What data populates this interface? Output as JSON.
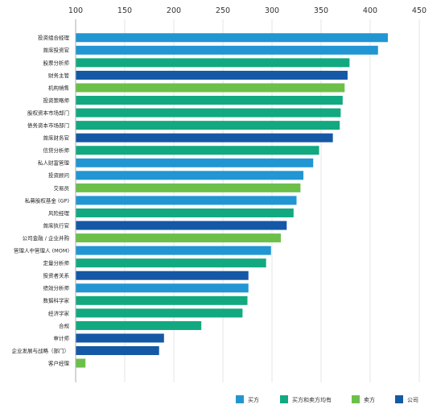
{
  "chart_data": {
    "type": "bar",
    "orientation": "horizontal",
    "title": "",
    "xlabel": "",
    "ylabel": "",
    "xlim": [
      100,
      450
    ],
    "xticks": [
      100,
      150,
      200,
      250,
      300,
      350,
      400,
      450
    ],
    "grid": true,
    "legend_position": "bottom-right",
    "colors": {
      "buy": "#2196d3",
      "both": "#12a980",
      "sell": "#6cc04a",
      "corp": "#1458a6"
    },
    "legend": [
      {
        "key": "buy",
        "label": "买方"
      },
      {
        "key": "both",
        "label": "买方和卖方均有"
      },
      {
        "key": "sell",
        "label": "卖方"
      },
      {
        "key": "corp",
        "label": "公司"
      }
    ],
    "categories": [
      "投资组合经理",
      "首席投资官",
      "股票分析师",
      "财务主管",
      "机构销售",
      "投资策略师",
      "股权资本市场部门",
      "债务资本市场部门",
      "首席财务官",
      "信贷分析师",
      "私人财富管理",
      "投资顾问",
      "交易员",
      "私募股权基金 (GP)",
      "风险经理",
      "首席执行官",
      "公司金融 / 企业并购",
      "管理人中管理人 (MOM)",
      "定量分析师",
      "投资者关系",
      "绩效分析师",
      "数据科学家",
      "经济学家",
      "合规",
      "审计师",
      "企业发展与战略（部门）",
      "客户经理"
    ],
    "values": [
      418,
      408,
      379,
      377,
      374,
      372,
      370,
      369,
      362,
      348,
      342,
      332,
      329,
      325,
      322,
      315,
      309,
      299,
      294,
      276,
      276,
      275,
      270,
      228,
      190,
      185,
      110
    ],
    "groups": [
      "buy",
      "buy",
      "both",
      "corp",
      "sell",
      "both",
      "both",
      "both",
      "corp",
      "both",
      "buy",
      "buy",
      "sell",
      "buy",
      "both",
      "corp",
      "sell",
      "buy",
      "both",
      "corp",
      "buy",
      "both",
      "both",
      "both",
      "corp",
      "corp",
      "sell"
    ]
  }
}
